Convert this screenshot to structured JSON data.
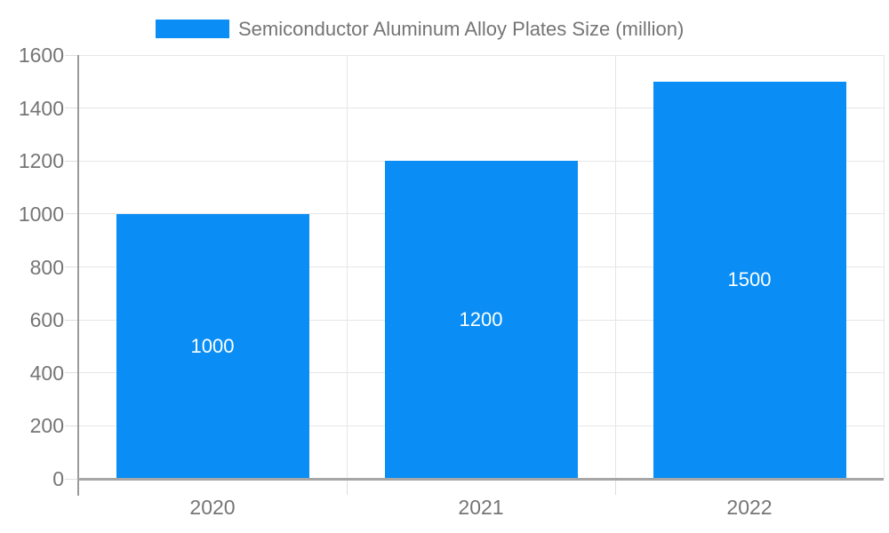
{
  "chart_data": {
    "type": "bar",
    "title": "Semiconductor Aluminum Alloy Plates Size (million)",
    "categories": [
      "2020",
      "2021",
      "2022"
    ],
    "values": [
      1000,
      1200,
      1500
    ],
    "xlabel": "",
    "ylabel": "",
    "ylim": [
      0,
      1600
    ],
    "ytick_step": 200,
    "grid": true,
    "legend_position": "top",
    "bar_color": "#0a8ef5",
    "value_label_color": "#ffffff",
    "axis_text_color": "#757575",
    "gridline_color": "#e6e6e6",
    "axis_line_color": "#a6a6a6"
  }
}
